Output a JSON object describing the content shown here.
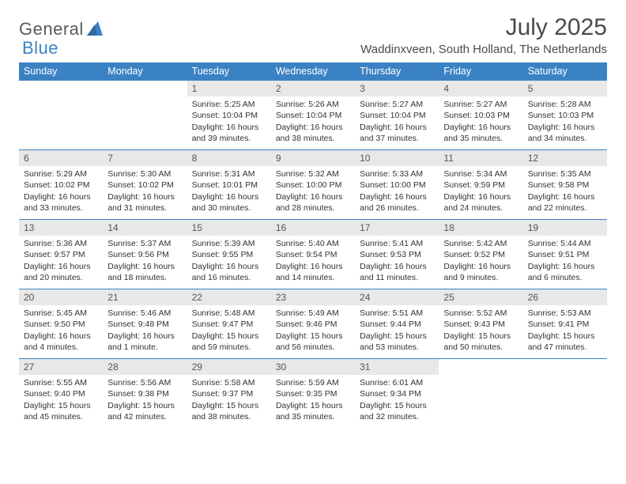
{
  "logo": {
    "text1": "General",
    "text2": "Blue"
  },
  "title": "July 2025",
  "location": "Waddinxveen, South Holland, The Netherlands",
  "colors": {
    "header_bg": "#3b82c4",
    "header_fg": "#ffffff",
    "daynum_bg": "#e8e8e8",
    "cell_border": "#3b82c4",
    "page_bg": "#ffffff",
    "text": "#333333",
    "title_color": "#4a4a4a"
  },
  "typography": {
    "title_fontsize": 30,
    "location_fontsize": 15,
    "header_fontsize": 12.5,
    "daynum_fontsize": 12,
    "cell_fontsize": 10.5
  },
  "weekdays": [
    "Sunday",
    "Monday",
    "Tuesday",
    "Wednesday",
    "Thursday",
    "Friday",
    "Saturday"
  ],
  "weeks": [
    [
      null,
      null,
      {
        "n": "1",
        "sunrise": "5:25 AM",
        "sunset": "10:04 PM",
        "daylight": "16 hours and 39 minutes."
      },
      {
        "n": "2",
        "sunrise": "5:26 AM",
        "sunset": "10:04 PM",
        "daylight": "16 hours and 38 minutes."
      },
      {
        "n": "3",
        "sunrise": "5:27 AM",
        "sunset": "10:04 PM",
        "daylight": "16 hours and 37 minutes."
      },
      {
        "n": "4",
        "sunrise": "5:27 AM",
        "sunset": "10:03 PM",
        "daylight": "16 hours and 35 minutes."
      },
      {
        "n": "5",
        "sunrise": "5:28 AM",
        "sunset": "10:03 PM",
        "daylight": "16 hours and 34 minutes."
      }
    ],
    [
      {
        "n": "6",
        "sunrise": "5:29 AM",
        "sunset": "10:02 PM",
        "daylight": "16 hours and 33 minutes."
      },
      {
        "n": "7",
        "sunrise": "5:30 AM",
        "sunset": "10:02 PM",
        "daylight": "16 hours and 31 minutes."
      },
      {
        "n": "8",
        "sunrise": "5:31 AM",
        "sunset": "10:01 PM",
        "daylight": "16 hours and 30 minutes."
      },
      {
        "n": "9",
        "sunrise": "5:32 AM",
        "sunset": "10:00 PM",
        "daylight": "16 hours and 28 minutes."
      },
      {
        "n": "10",
        "sunrise": "5:33 AM",
        "sunset": "10:00 PM",
        "daylight": "16 hours and 26 minutes."
      },
      {
        "n": "11",
        "sunrise": "5:34 AM",
        "sunset": "9:59 PM",
        "daylight": "16 hours and 24 minutes."
      },
      {
        "n": "12",
        "sunrise": "5:35 AM",
        "sunset": "9:58 PM",
        "daylight": "16 hours and 22 minutes."
      }
    ],
    [
      {
        "n": "13",
        "sunrise": "5:36 AM",
        "sunset": "9:57 PM",
        "daylight": "16 hours and 20 minutes."
      },
      {
        "n": "14",
        "sunrise": "5:37 AM",
        "sunset": "9:56 PM",
        "daylight": "16 hours and 18 minutes."
      },
      {
        "n": "15",
        "sunrise": "5:39 AM",
        "sunset": "9:55 PM",
        "daylight": "16 hours and 16 minutes."
      },
      {
        "n": "16",
        "sunrise": "5:40 AM",
        "sunset": "9:54 PM",
        "daylight": "16 hours and 14 minutes."
      },
      {
        "n": "17",
        "sunrise": "5:41 AM",
        "sunset": "9:53 PM",
        "daylight": "16 hours and 11 minutes."
      },
      {
        "n": "18",
        "sunrise": "5:42 AM",
        "sunset": "9:52 PM",
        "daylight": "16 hours and 9 minutes."
      },
      {
        "n": "19",
        "sunrise": "5:44 AM",
        "sunset": "9:51 PM",
        "daylight": "16 hours and 6 minutes."
      }
    ],
    [
      {
        "n": "20",
        "sunrise": "5:45 AM",
        "sunset": "9:50 PM",
        "daylight": "16 hours and 4 minutes."
      },
      {
        "n": "21",
        "sunrise": "5:46 AM",
        "sunset": "9:48 PM",
        "daylight": "16 hours and 1 minute."
      },
      {
        "n": "22",
        "sunrise": "5:48 AM",
        "sunset": "9:47 PM",
        "daylight": "15 hours and 59 minutes."
      },
      {
        "n": "23",
        "sunrise": "5:49 AM",
        "sunset": "9:46 PM",
        "daylight": "15 hours and 56 minutes."
      },
      {
        "n": "24",
        "sunrise": "5:51 AM",
        "sunset": "9:44 PM",
        "daylight": "15 hours and 53 minutes."
      },
      {
        "n": "25",
        "sunrise": "5:52 AM",
        "sunset": "9:43 PM",
        "daylight": "15 hours and 50 minutes."
      },
      {
        "n": "26",
        "sunrise": "5:53 AM",
        "sunset": "9:41 PM",
        "daylight": "15 hours and 47 minutes."
      }
    ],
    [
      {
        "n": "27",
        "sunrise": "5:55 AM",
        "sunset": "9:40 PM",
        "daylight": "15 hours and 45 minutes."
      },
      {
        "n": "28",
        "sunrise": "5:56 AM",
        "sunset": "9:38 PM",
        "daylight": "15 hours and 42 minutes."
      },
      {
        "n": "29",
        "sunrise": "5:58 AM",
        "sunset": "9:37 PM",
        "daylight": "15 hours and 38 minutes."
      },
      {
        "n": "30",
        "sunrise": "5:59 AM",
        "sunset": "9:35 PM",
        "daylight": "15 hours and 35 minutes."
      },
      {
        "n": "31",
        "sunrise": "6:01 AM",
        "sunset": "9:34 PM",
        "daylight": "15 hours and 32 minutes."
      },
      null,
      null
    ]
  ],
  "labels": {
    "sunrise": "Sunrise:",
    "sunset": "Sunset:",
    "daylight": "Daylight:"
  }
}
